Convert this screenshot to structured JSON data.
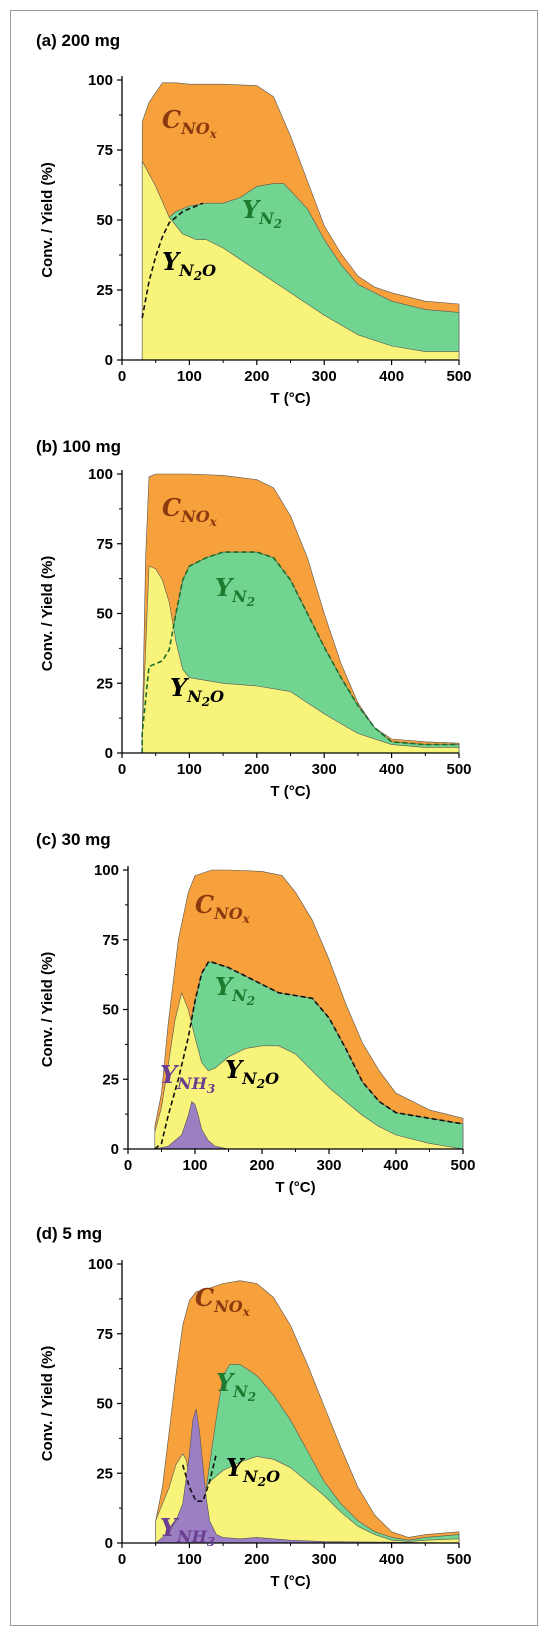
{
  "colors": {
    "nox": "#f7a13c",
    "n2": "#72d491",
    "n2o": "#f8f37a",
    "nh3": "#9c7ec2",
    "nox_text": "#8b3a10",
    "n2_text": "#1e7a2e",
    "n2o_text": "#000000",
    "nh3_text": "#6a3d93"
  },
  "chart_data": [
    {
      "type": "area",
      "title": "(a) 200 mg",
      "xlabel": "T (°C)",
      "ylabel": "Conv. / Yield (%)",
      "xlim": [
        0,
        500
      ],
      "ylim": [
        0,
        100
      ],
      "xticks": [
        "0",
        "100",
        "200",
        "300",
        "400",
        "500"
      ],
      "yticks": [
        "0",
        "25",
        "50",
        "75",
        "100"
      ],
      "annotations": [
        {
          "base": "C",
          "sub": "NO",
          "subsub": "x",
          "series": "NOx"
        },
        {
          "base": "Y",
          "sub": "N",
          "subsub": "2",
          "series": "N2"
        },
        {
          "base": "Y",
          "sub": "N",
          "subsub": "2",
          "sub2": "O",
          "series": "N2O"
        }
      ],
      "series": [
        {
          "key": "nox",
          "x": [
            30,
            30,
            40,
            60,
            80,
            100,
            150,
            200,
            225,
            250,
            275,
            300,
            325,
            350,
            375,
            400,
            450,
            500
          ],
          "y": [
            0,
            85,
            92,
            99,
            99,
            98.5,
            98.5,
            98,
            94,
            80,
            64,
            48,
            38,
            30,
            26,
            24,
            21,
            20
          ]
        },
        {
          "key": "n2",
          "x": [
            30,
            60,
            80,
            100,
            125,
            150,
            175,
            200,
            225,
            240,
            275,
            300,
            325,
            350,
            400,
            450,
            500
          ],
          "y": [
            0,
            49,
            53,
            55,
            56,
            56,
            58,
            62,
            63,
            63,
            54,
            43,
            34,
            27,
            21,
            18,
            17
          ]
        },
        {
          "key": "n2o",
          "x": [
            30,
            30,
            50,
            70,
            90,
            110,
            125,
            150,
            200,
            250,
            300,
            350,
            400,
            450,
            500
          ],
          "y": [
            0,
            71,
            62,
            51,
            45,
            43,
            43,
            40,
            32,
            24,
            16,
            9,
            5,
            3,
            3
          ]
        }
      ],
      "dashed": {
        "x": [
          30,
          40,
          50,
          60,
          70,
          80,
          90,
          100,
          110,
          120
        ],
        "y": [
          15,
          28,
          37,
          44,
          49,
          51,
          53,
          54,
          55,
          56
        ]
      }
    },
    {
      "type": "area",
      "title": "(b) 100 mg",
      "xlabel": "T (°C)",
      "ylabel": "Conv. / Yield (%)",
      "xlim": [
        0,
        500
      ],
      "ylim": [
        0,
        100
      ],
      "xticks": [
        "0",
        "100",
        "200",
        "300",
        "400",
        "500"
      ],
      "yticks": [
        "0",
        "25",
        "50",
        "75",
        "100"
      ],
      "annotations": [
        {
          "base": "C",
          "sub": "NO",
          "subsub": "x",
          "series": "NOx"
        },
        {
          "base": "Y",
          "sub": "N",
          "subsub": "2",
          "series": "N2"
        },
        {
          "base": "Y",
          "sub": "N",
          "subsub": "2",
          "sub2": "O",
          "series": "N2O"
        }
      ],
      "series": [
        {
          "key": "nox",
          "x": [
            30,
            30,
            35,
            40,
            50,
            100,
            150,
            200,
            225,
            250,
            275,
            300,
            325,
            350,
            375,
            400,
            450,
            500
          ],
          "y": [
            0,
            7,
            70,
            99,
            100,
            100,
            99.5,
            98,
            95,
            85,
            70,
            50,
            32,
            18,
            9,
            5,
            4,
            3.5
          ]
        },
        {
          "key": "n2",
          "x": [
            30,
            30,
            40,
            60,
            70,
            80,
            90,
            100,
            125,
            150,
            175,
            200,
            225,
            250,
            275,
            300,
            325,
            350,
            375,
            400,
            450,
            500
          ],
          "y": [
            0,
            7,
            31,
            33,
            37,
            50,
            62,
            67,
            70,
            72,
            72,
            72,
            70,
            62,
            50,
            38,
            27,
            17,
            9,
            4,
            3,
            3
          ]
        },
        {
          "key": "n2o",
          "x": [
            30,
            30,
            40,
            50,
            60,
            70,
            80,
            90,
            100,
            150,
            200,
            250,
            300,
            350,
            400,
            450,
            500
          ],
          "y": [
            0,
            7,
            67,
            66,
            62,
            54,
            40,
            30,
            27,
            25,
            24,
            22,
            14,
            7,
            3,
            2,
            2
          ]
        }
      ],
      "dashed": {
        "x": [
          30,
          30,
          40,
          60,
          70,
          80,
          90,
          100,
          125,
          150,
          175,
          200,
          225,
          250,
          275,
          300,
          325,
          350,
          375,
          400,
          450,
          500
        ],
        "y": [
          0,
          7,
          31,
          33,
          37,
          50,
          62,
          67,
          70,
          72,
          72,
          72,
          70,
          62,
          50,
          38,
          27,
          17,
          9,
          4,
          3,
          3
        ]
      }
    },
    {
      "type": "area",
      "title": "(c) 30 mg",
      "xlabel": "T (°C)",
      "ylabel": "Conv. / Yield (%)",
      "xlim": [
        0,
        500
      ],
      "ylim": [
        0,
        100
      ],
      "xticks": [
        "0",
        "100",
        "200",
        "300",
        "400",
        "500"
      ],
      "yticks": [
        "0",
        "25",
        "50",
        "75",
        "100"
      ],
      "annotations": [
        {
          "base": "C",
          "sub": "NO",
          "subsub": "x",
          "series": "NOx"
        },
        {
          "base": "Y",
          "sub": "N",
          "subsub": "2",
          "series": "N2"
        },
        {
          "base": "Y",
          "sub": "N",
          "subsub": "2",
          "sub2": "O",
          "series": "N2O"
        },
        {
          "base": "Y",
          "sub": "NH",
          "subsub": "3",
          "series": "NH3"
        }
      ],
      "series": [
        {
          "key": "nox",
          "x": [
            40,
            40,
            50,
            60,
            75,
            90,
            100,
            125,
            150,
            200,
            230,
            250,
            275,
            300,
            325,
            350,
            375,
            400,
            450,
            500
          ],
          "y": [
            0,
            8,
            20,
            45,
            75,
            92,
            98,
            100,
            100,
            99.5,
            98,
            92,
            82,
            68,
            52,
            38,
            28,
            20,
            14,
            11
          ]
        },
        {
          "key": "n2",
          "x": [
            40,
            50,
            60,
            75,
            90,
            100,
            110,
            120,
            125,
            150,
            175,
            200,
            225,
            250,
            275,
            300,
            325,
            350,
            375,
            400,
            450,
            500
          ],
          "y": [
            0,
            2,
            12,
            25,
            40,
            53,
            63,
            67,
            67,
            65,
            62,
            59,
            56,
            55,
            54,
            47,
            36,
            24,
            17,
            13,
            11,
            9
          ]
        },
        {
          "key": "n2o",
          "x": [
            40,
            40,
            50,
            60,
            70,
            80,
            90,
            100,
            110,
            120,
            130,
            150,
            175,
            200,
            225,
            250,
            275,
            300,
            325,
            350,
            375,
            400,
            450,
            500
          ],
          "y": [
            0,
            6,
            15,
            30,
            46,
            56,
            50,
            40,
            31,
            28,
            29,
            33,
            36,
            37,
            37,
            34,
            28,
            22,
            17,
            12,
            8,
            5,
            2,
            0
          ]
        },
        {
          "key": "nh3",
          "x": [
            40,
            60,
            70,
            80,
            90,
            95,
            100,
            105,
            110,
            120,
            130,
            150
          ],
          "y": [
            0,
            1,
            3,
            5,
            12,
            17,
            16,
            12,
            7,
            3,
            1,
            0
          ]
        }
      ],
      "dashed": {
        "x": [
          40,
          50,
          60,
          75,
          90,
          100,
          110,
          120,
          125,
          150,
          175,
          200,
          225,
          250,
          275,
          300,
          325,
          350,
          375,
          400,
          450,
          500
        ],
        "y": [
          0,
          2,
          12,
          25,
          40,
          53,
          63,
          67,
          67,
          65,
          62,
          59,
          56,
          55,
          54,
          47,
          36,
          24,
          17,
          13,
          11,
          9
        ]
      }
    },
    {
      "type": "area",
      "title": "(d) 5 mg",
      "xlabel": "T (°C)",
      "ylabel": "Conv. / Yield (%)",
      "xlim": [
        0,
        500
      ],
      "ylim": [
        0,
        100
      ],
      "xticks": [
        "0",
        "100",
        "200",
        "300",
        "400",
        "500"
      ],
      "yticks": [
        "0",
        "25",
        "50",
        "75",
        "100"
      ],
      "annotations": [
        {
          "base": "C",
          "sub": "NO",
          "subsub": "x",
          "series": "NOx"
        },
        {
          "base": "Y",
          "sub": "N",
          "subsub": "2",
          "series": "N2"
        },
        {
          "base": "Y",
          "sub": "N",
          "subsub": "2",
          "sub2": "O",
          "series": "N2O"
        },
        {
          "base": "Y",
          "sub": "NH",
          "subsub": "3",
          "series": "NH3"
        }
      ],
      "series": [
        {
          "key": "nox",
          "x": [
            50,
            50,
            60,
            70,
            80,
            90,
            100,
            110,
            125,
            150,
            175,
            200,
            225,
            250,
            275,
            300,
            325,
            350,
            375,
            400,
            425,
            450,
            475,
            500
          ],
          "y": [
            0,
            8,
            20,
            40,
            60,
            78,
            87,
            90,
            91,
            93,
            94,
            93,
            88,
            78,
            64,
            49,
            34,
            20,
            10,
            4,
            2,
            3,
            3.5,
            4
          ]
        },
        {
          "key": "n2",
          "x": [
            50,
            90,
            100,
            110,
            125,
            140,
            150,
            160,
            175,
            200,
            225,
            250,
            275,
            300,
            325,
            350,
            375,
            400,
            425,
            450,
            500
          ],
          "y": [
            0,
            28,
            20,
            15,
            20,
            45,
            60,
            64,
            64,
            60,
            53,
            44,
            33,
            22,
            14,
            8,
            4,
            2,
            1,
            2,
            3
          ]
        },
        {
          "key": "n2o",
          "x": [
            50,
            50,
            60,
            70,
            80,
            90,
            95,
            100,
            110,
            120,
            130,
            150,
            175,
            200,
            225,
            250,
            275,
            300,
            325,
            350,
            375,
            400,
            425,
            450,
            500
          ],
          "y": [
            0,
            8,
            14,
            20,
            28,
            32,
            30,
            24,
            16,
            18,
            22,
            26,
            29,
            31,
            30,
            27,
            22,
            17,
            11,
            6,
            3,
            1,
            0.5,
            1,
            1.5
          ]
        },
        {
          "key": "nh3",
          "x": [
            50,
            70,
            80,
            90,
            100,
            105,
            110,
            115,
            120,
            125,
            130,
            140,
            150,
            175,
            200,
            250,
            300,
            400,
            500
          ],
          "y": [
            0,
            4,
            8,
            14,
            32,
            44,
            48,
            40,
            28,
            16,
            8,
            3,
            2,
            1.5,
            2,
            1,
            0.5,
            0.3,
            0
          ]
        }
      ],
      "dashed": {
        "x": [
          90,
          100,
          110,
          120,
          130,
          140
        ],
        "y": [
          28,
          20,
          15,
          15,
          22,
          32
        ]
      }
    }
  ]
}
